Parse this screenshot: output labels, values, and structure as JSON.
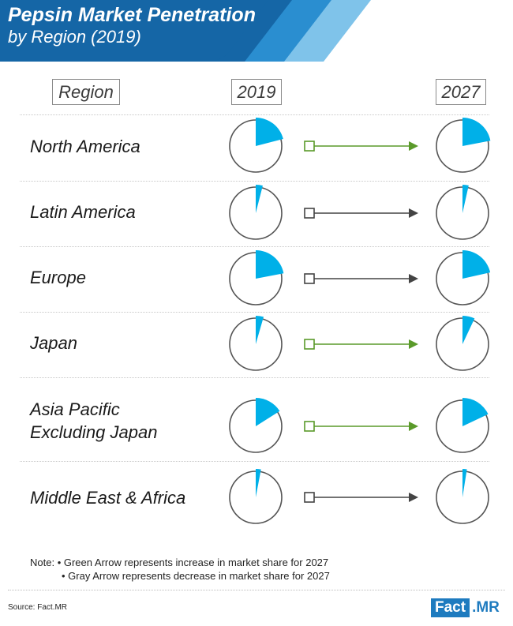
{
  "header": {
    "title_line1": "Pepsin Market Penetration",
    "title_line2": "by Region (2019)",
    "colors": {
      "dark": "#1566a6",
      "mid": "#2a8ed0",
      "light": "#7fc3ea"
    }
  },
  "columns": {
    "region": "Region",
    "y2019": "2019",
    "y2027": "2027"
  },
  "chart_data": {
    "type": "pie",
    "title": "Pepsin Market Penetration by Region (2019)",
    "years": [
      "2019",
      "2027"
    ],
    "unit": "share of circle (fraction)",
    "colors": {
      "share": "#00b0e8",
      "increase_arrow": "#5a9a2a",
      "decrease_arrow": "#444444"
    },
    "regions": [
      {
        "name": "North America",
        "label_lines": [
          "North America"
        ],
        "share_2019": 0.21,
        "share_2027": 0.22,
        "trend": "increase"
      },
      {
        "name": "Latin America",
        "label_lines": [
          "Latin America"
        ],
        "share_2019": 0.04,
        "share_2027": 0.035,
        "trend": "decrease"
      },
      {
        "name": "Europe",
        "label_lines": [
          "Europe"
        ],
        "share_2019": 0.22,
        "share_2027": 0.215,
        "trend": "decrease"
      },
      {
        "name": "Japan",
        "label_lines": [
          "Japan"
        ],
        "share_2019": 0.045,
        "share_2027": 0.07,
        "trend": "increase"
      },
      {
        "name": "Asia Pacific Excluding Japan",
        "label_lines": [
          "Asia Pacific",
          "Excluding Japan"
        ],
        "share_2019": 0.16,
        "share_2027": 0.18,
        "trend": "increase"
      },
      {
        "name": "Middle East & Africa",
        "label_lines": [
          "Middle East & Africa"
        ],
        "share_2019": 0.03,
        "share_2027": 0.025,
        "trend": "decrease"
      }
    ]
  },
  "notes": {
    "prefix": "Note:",
    "green": "• Green Arrow represents increase in market share for 2027",
    "gray": "• Gray Arrow represents decrease in market share for 2027"
  },
  "source": "Source: Fact.MR",
  "logo": {
    "part1": "Fact",
    "part2": ".MR"
  }
}
